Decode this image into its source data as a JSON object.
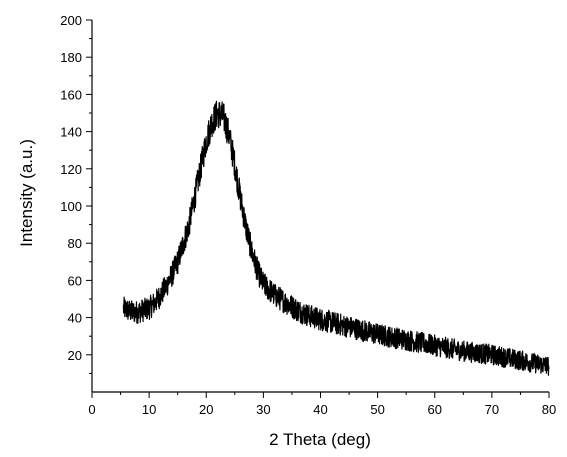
{
  "chart_data": {
    "type": "line",
    "title": "",
    "xlabel": "2 Theta (deg)",
    "ylabel": "Intensity (a.u.)",
    "xlim": [
      0,
      80
    ],
    "ylim": [
      0,
      200
    ],
    "x_ticks": [
      "0",
      "10",
      "20",
      "30",
      "40",
      "50",
      "60",
      "70",
      "80"
    ],
    "y_ticks": [
      "20",
      "40",
      "60",
      "80",
      "100",
      "120",
      "140",
      "160",
      "180",
      "200"
    ],
    "grid": false,
    "legend": "none",
    "series": [
      {
        "color": "#000000",
        "x": [
          5.5,
          7,
          8,
          9,
          10,
          11,
          12,
          13,
          14,
          15,
          16,
          17,
          18,
          19,
          20,
          21,
          22,
          23,
          24,
          25,
          26,
          27,
          28,
          29,
          30,
          32,
          34,
          36,
          38,
          40,
          45,
          50,
          55,
          60,
          65,
          70,
          75,
          80
        ],
        "values": [
          45,
          43,
          43,
          44,
          45,
          48,
          52,
          57,
          63,
          70,
          80,
          90,
          105,
          120,
          135,
          145,
          150,
          148,
          138,
          122,
          104,
          88,
          75,
          65,
          58,
          52,
          48,
          44,
          41,
          39,
          35,
          31,
          28,
          25,
          22,
          20,
          17,
          14
        ]
      }
    ],
    "noise_amplitude": 4
  }
}
